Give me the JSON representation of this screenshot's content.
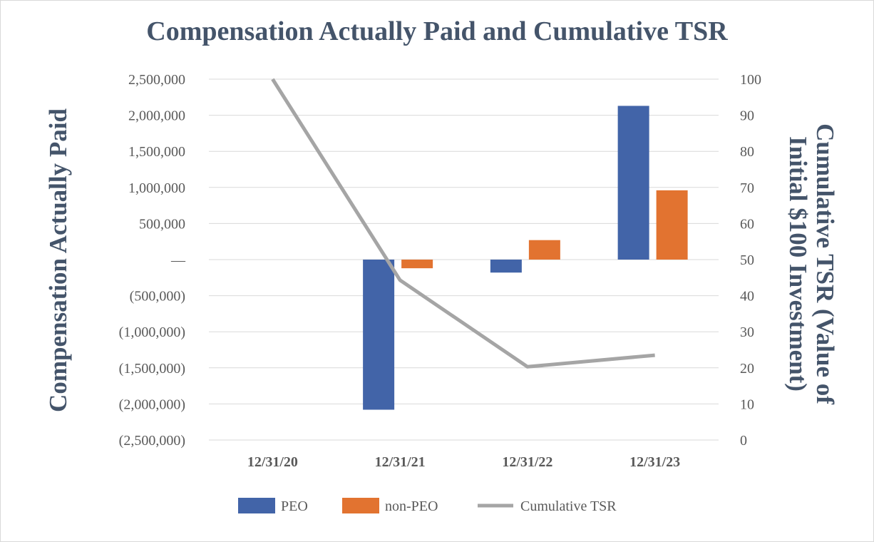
{
  "chart_data": {
    "type": "bar",
    "title": "Compensation Actually Paid and Cumulative TSR",
    "ylabel": "Compensation Actually Paid",
    "y2label": "Cumulative TSR (Value of Initial $100 Investment)",
    "categories": [
      "12/31/20",
      "12/31/21",
      "12/31/22",
      "12/31/23"
    ],
    "ylim": [
      -2500000,
      2500000
    ],
    "yticks": [
      2500000,
      2000000,
      1500000,
      1000000,
      500000,
      0,
      -500000,
      -1000000,
      -1500000,
      -2000000,
      -2500000
    ],
    "ytick_labels": [
      "2,500,000",
      "2,000,000",
      "1,500,000",
      "1,000,000",
      "500,000",
      "—",
      "(500,000)",
      "(1,000,000)",
      "(1,500,000)",
      "(2,000,000)",
      "(2,500,000)"
    ],
    "y2lim": [
      0,
      100
    ],
    "y2ticks": [
      100,
      90,
      80,
      70,
      60,
      50,
      40,
      30,
      20,
      10,
      0
    ],
    "y2tick_labels": [
      "100",
      "90",
      "80",
      "70",
      "60",
      "50",
      "40",
      "30",
      "20",
      "10",
      "0"
    ],
    "grid": true,
    "legend_position": "bottom",
    "series": [
      {
        "name": "PEO",
        "type": "bar",
        "axis": "left",
        "color": "#4264a8",
        "values": [
          null,
          -2080000,
          -180000,
          2130000
        ]
      },
      {
        "name": "non-PEO",
        "type": "bar",
        "axis": "left",
        "color": "#e27330",
        "values": [
          null,
          -120000,
          270000,
          960000
        ]
      },
      {
        "name": "Cumulative TSR",
        "type": "line",
        "axis": "right",
        "color": "#a5a5a5",
        "values": [
          100,
          44.3,
          20.3,
          23.5
        ]
      }
    ]
  }
}
